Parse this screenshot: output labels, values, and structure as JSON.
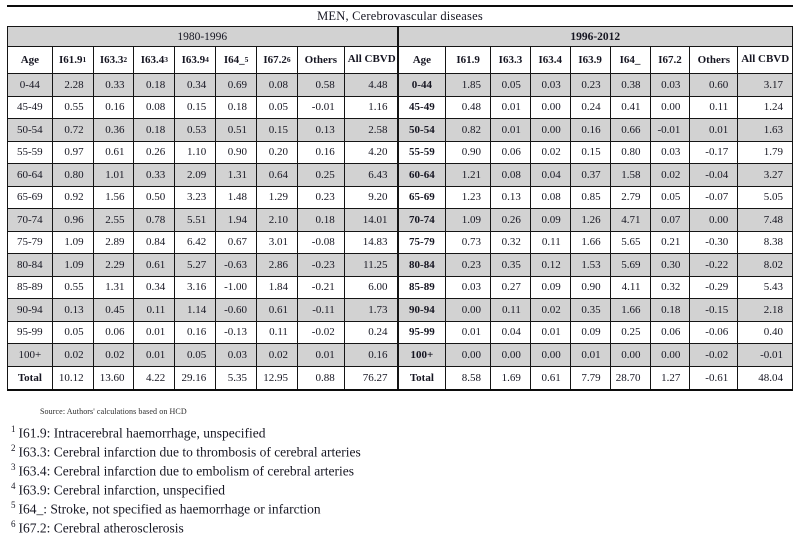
{
  "title": "MEN, Cerebrovascular diseases",
  "source_note": "Source: Authors' calculations based on HCD",
  "tables": [
    {
      "period_label": "1980-1996",
      "columns": [
        {
          "label": "Age",
          "sup": ""
        },
        {
          "label": "I61.9",
          "sup": "1"
        },
        {
          "label": "I63.3",
          "sup": "2"
        },
        {
          "label": "I63.4",
          "sup": "3"
        },
        {
          "label": "I63.9",
          "sup": "4"
        },
        {
          "label": "I64_",
          "sup": "5"
        },
        {
          "label": "I67.2",
          "sup": "6"
        },
        {
          "label": "Others",
          "sup": ""
        },
        {
          "label": "All CBVD",
          "sup": ""
        }
      ],
      "rows": [
        [
          "0-44",
          "2.28",
          "0.33",
          "0.18",
          "0.34",
          "0.69",
          "0.08",
          "0.58",
          "4.48"
        ],
        [
          "45-49",
          "0.55",
          "0.16",
          "0.08",
          "0.15",
          "0.18",
          "0.05",
          "-0.01",
          "1.16"
        ],
        [
          "50-54",
          "0.72",
          "0.36",
          "0.18",
          "0.53",
          "0.51",
          "0.15",
          "0.13",
          "2.58"
        ],
        [
          "55-59",
          "0.97",
          "0.61",
          "0.26",
          "1.10",
          "0.90",
          "0.20",
          "0.16",
          "4.20"
        ],
        [
          "60-64",
          "0.80",
          "1.01",
          "0.33",
          "2.09",
          "1.31",
          "0.64",
          "0.25",
          "6.43"
        ],
        [
          "65-69",
          "0.92",
          "1.56",
          "0.50",
          "3.23",
          "1.48",
          "1.29",
          "0.23",
          "9.20"
        ],
        [
          "70-74",
          "0.96",
          "2.55",
          "0.78",
          "5.51",
          "1.94",
          "2.10",
          "0.18",
          "14.01"
        ],
        [
          "75-79",
          "1.09",
          "2.89",
          "0.84",
          "6.42",
          "0.67",
          "3.01",
          "-0.08",
          "14.83"
        ],
        [
          "80-84",
          "1.09",
          "2.29",
          "0.61",
          "5.27",
          "-0.63",
          "2.86",
          "-0.23",
          "11.25"
        ],
        [
          "85-89",
          "0.55",
          "1.31",
          "0.34",
          "3.16",
          "-1.00",
          "1.84",
          "-0.21",
          "6.00"
        ],
        [
          "90-94",
          "0.13",
          "0.45",
          "0.11",
          "1.14",
          "-0.60",
          "0.61",
          "-0.11",
          "1.73"
        ],
        [
          "95-99",
          "0.05",
          "0.06",
          "0.01",
          "0.16",
          "-0.13",
          "0.11",
          "-0.02",
          "0.24"
        ],
        [
          "100+",
          "0.02",
          "0.02",
          "0.01",
          "0.05",
          "0.03",
          "0.02",
          "0.01",
          "0.16"
        ]
      ],
      "total_row": [
        "Total",
        "10.12",
        "13.60",
        "4.22",
        "29.16",
        "5.35",
        "12.95",
        "0.88",
        "76.27"
      ]
    },
    {
      "period_label": "1996-2012",
      "columns": [
        {
          "label": "Age",
          "sup": ""
        },
        {
          "label": "I61.9",
          "sup": ""
        },
        {
          "label": "I63.3",
          "sup": ""
        },
        {
          "label": "I63.4",
          "sup": ""
        },
        {
          "label": "I63.9",
          "sup": ""
        },
        {
          "label": "I64_",
          "sup": ""
        },
        {
          "label": "I67.2",
          "sup": ""
        },
        {
          "label": "Others",
          "sup": ""
        },
        {
          "label": "All CBVD",
          "sup": ""
        }
      ],
      "rows": [
        [
          "0-44",
          "1.85",
          "0.05",
          "0.03",
          "0.23",
          "0.38",
          "0.03",
          "0.60",
          "3.17"
        ],
        [
          "45-49",
          "0.48",
          "0.01",
          "0.00",
          "0.24",
          "0.41",
          "0.00",
          "0.11",
          "1.24"
        ],
        [
          "50-54",
          "0.82",
          "0.01",
          "0.00",
          "0.16",
          "0.66",
          "-0.01",
          "0.01",
          "1.63"
        ],
        [
          "55-59",
          "0.90",
          "0.06",
          "0.02",
          "0.15",
          "0.80",
          "0.03",
          "-0.17",
          "1.79"
        ],
        [
          "60-64",
          "1.21",
          "0.08",
          "0.04",
          "0.37",
          "1.58",
          "0.02",
          "-0.04",
          "3.27"
        ],
        [
          "65-69",
          "1.23",
          "0.13",
          "0.08",
          "0.85",
          "2.79",
          "0.05",
          "-0.07",
          "5.05"
        ],
        [
          "70-74",
          "1.09",
          "0.26",
          "0.09",
          "1.26",
          "4.71",
          "0.07",
          "0.00",
          "7.48"
        ],
        [
          "75-79",
          "0.73",
          "0.32",
          "0.11",
          "1.66",
          "5.65",
          "0.21",
          "-0.30",
          "8.38"
        ],
        [
          "80-84",
          "0.23",
          "0.35",
          "0.12",
          "1.53",
          "5.69",
          "0.30",
          "-0.22",
          "8.02"
        ],
        [
          "85-89",
          "0.03",
          "0.27",
          "0.09",
          "0.90",
          "4.11",
          "0.32",
          "-0.29",
          "5.43"
        ],
        [
          "90-94",
          "0.00",
          "0.11",
          "0.02",
          "0.35",
          "1.66",
          "0.18",
          "-0.15",
          "2.18"
        ],
        [
          "95-99",
          "0.01",
          "0.04",
          "0.01",
          "0.09",
          "0.25",
          "0.06",
          "-0.06",
          "0.40"
        ],
        [
          "100+",
          "0.00",
          "0.00",
          "0.00",
          "0.01",
          "0.00",
          "0.00",
          "-0.02",
          "-0.01"
        ]
      ],
      "total_row": [
        "Total",
        "8.58",
        "1.69",
        "0.61",
        "7.79",
        "28.70",
        "1.27",
        "-0.61",
        "48.04"
      ]
    }
  ],
  "footnotes": [
    {
      "sup": "1",
      "text": "I61.9: Intracerebral haemorrhage, unspecified"
    },
    {
      "sup": "2",
      "text": "I63.3: Cerebral infarction due to thrombosis of cerebral arteries"
    },
    {
      "sup": "3",
      "text": "I63.4: Cerebral infarction due to embolism of cerebral arteries"
    },
    {
      "sup": "4",
      "text": "I63.9: Cerebral infarction, unspecified"
    },
    {
      "sup": "5",
      "text": "I64_: Stroke, not specified as haemorrhage or infarction"
    },
    {
      "sup": "6",
      "text": "I67.2: Cerebral atherosclerosis"
    }
  ]
}
